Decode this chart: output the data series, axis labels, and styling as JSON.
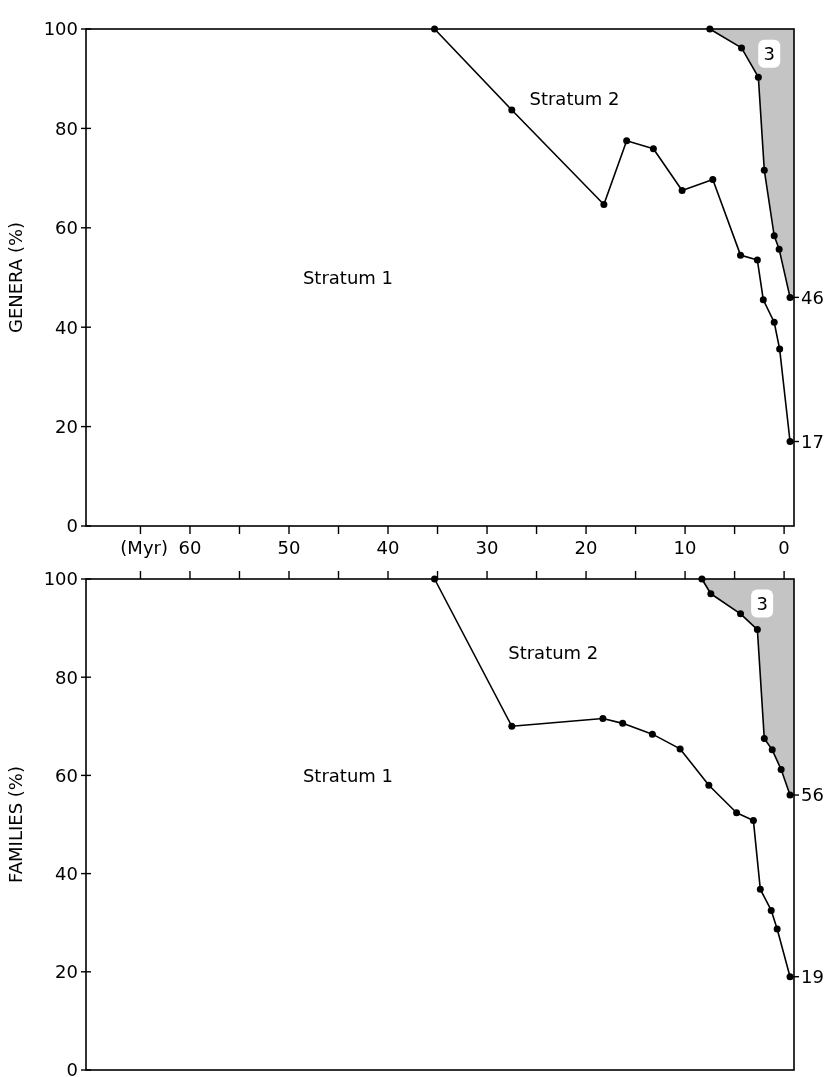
{
  "chart_data": [
    {
      "type": "line",
      "ylabel": "GENERA (%)",
      "xlabel": "(Myr)",
      "xlim": [
        70.5,
        -1
      ],
      "ylim": [
        0,
        100
      ],
      "xticks": [
        {
          "value": 65,
          "label": null
        },
        60,
        {
          "value": 55,
          "label": null
        },
        50,
        {
          "value": 45,
          "label": null
        },
        40,
        {
          "value": 35,
          "label": null
        },
        30,
        {
          "value": 25,
          "label": null
        },
        20,
        {
          "value": 15,
          "label": null
        },
        10,
        {
          "value": 5,
          "label": null
        },
        0
      ],
      "yticks": [
        0,
        20,
        40,
        60,
        80,
        100
      ],
      "marker": "circle",
      "line_style": "solid",
      "grid": false,
      "series": [
        {
          "color": "#000000",
          "x": [
            35.3,
            27.5,
            18.2,
            15.9,
            13.2,
            10.3,
            7.2,
            4.4,
            2.7,
            2.1,
            1.0,
            0.45,
            -0.6
          ],
          "values": [
            100,
            83.7,
            64.7,
            77.5,
            75.9,
            67.5,
            69.7,
            54.5,
            53.5,
            45.5,
            41,
            35.6,
            17
          ],
          "value_labels": [
            null,
            null,
            null,
            null,
            null,
            null,
            null,
            null,
            null,
            null,
            null,
            null,
            "17"
          ]
        },
        {
          "color": "#000000",
          "x": [
            7.5,
            4.3,
            2.6,
            2.0,
            1.0,
            0.5,
            -0.6
          ],
          "values": [
            100,
            96.2,
            90.3,
            71.6,
            58.4,
            55.7,
            46
          ],
          "value_labels": [
            null,
            null,
            null,
            null,
            null,
            null,
            "46"
          ]
        }
      ],
      "annotations": [
        "Stratum 1",
        "Stratum 2",
        "3"
      ]
    },
    {
      "type": "line",
      "ylabel": "FAMILIES (%)",
      "xlim": [
        70.5,
        -1
      ],
      "ylim": [
        0,
        100
      ],
      "tick_labels": "y",
      "xticks": [
        {
          "value": 65,
          "label": null
        },
        {
          "value": 60,
          "label": null
        },
        {
          "value": 55,
          "label": null
        },
        {
          "value": 50,
          "label": null
        },
        {
          "value": 45,
          "label": null
        },
        {
          "value": 40,
          "label": null
        },
        {
          "value": 35,
          "label": null
        },
        {
          "value": 30,
          "label": null
        },
        {
          "value": 25,
          "label": null
        },
        {
          "value": 20,
          "label": null
        },
        {
          "value": 15,
          "label": null
        },
        {
          "value": 10,
          "label": null
        },
        {
          "value": 5,
          "label": null
        },
        {
          "value": 0,
          "label": null
        }
      ],
      "yticks": [
        0,
        20,
        40,
        60,
        80,
        100
      ],
      "marker": "circle",
      "line_style": "solid",
      "grid": false,
      "series": [
        {
          "color": "#000000",
          "x": [
            35.3,
            27.5,
            18.3,
            16.3,
            13.3,
            10.5,
            7.6,
            4.8,
            3.1,
            2.4,
            1.3,
            0.7,
            -0.6
          ],
          "values": [
            100,
            70,
            71.6,
            70.6,
            68.4,
            65.4,
            58,
            52.4,
            50.8,
            36.8,
            32.5,
            28.7,
            19
          ],
          "value_labels": [
            null,
            null,
            null,
            null,
            null,
            null,
            null,
            null,
            null,
            null,
            null,
            null,
            "19"
          ]
        },
        {
          "color": "#000000",
          "x": [
            8.3,
            7.4,
            4.4,
            2.7,
            2.0,
            1.2,
            0.3,
            -0.6
          ],
          "values": [
            100,
            97,
            92.9,
            89.7,
            67.5,
            65.2,
            61.2,
            56
          ],
          "value_labels": [
            null,
            null,
            null,
            null,
            null,
            null,
            null,
            "56"
          ]
        }
      ],
      "annotations": [
        "Stratum 1",
        "Stratum 2",
        "3"
      ]
    }
  ]
}
